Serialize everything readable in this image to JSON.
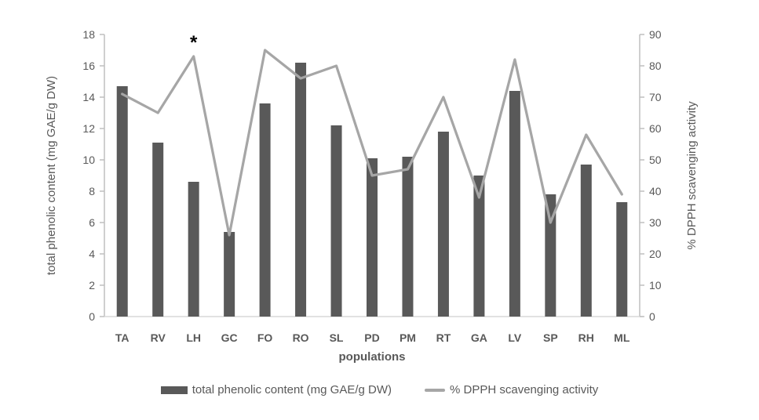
{
  "chart_data": {
    "type": "combo_bar_line",
    "title": "",
    "categories": [
      "TA",
      "RV",
      "LH",
      "GC",
      "FO",
      "RO",
      "SL",
      "PD",
      "PM",
      "RT",
      "GA",
      "LV",
      "SP",
      "RH",
      "ML"
    ],
    "series": [
      {
        "name": "total phenolic content (mg GAE/g DW)",
        "type": "bar",
        "axis": "left",
        "color": "#595959",
        "values": [
          14.7,
          11.1,
          8.6,
          5.4,
          13.6,
          16.2,
          12.2,
          10.1,
          10.2,
          11.8,
          9.0,
          14.4,
          7.8,
          9.7,
          7.3
        ]
      },
      {
        "name": "% DPPH scavenging activity",
        "type": "line",
        "axis": "right",
        "color": "#a6a6a6",
        "values": [
          71,
          65,
          83,
          26,
          85,
          76,
          80,
          45,
          47,
          70,
          38,
          82,
          30,
          58,
          39
        ]
      }
    ],
    "left_axis": {
      "label": "total phenolic content (mg GAE/g DW)",
      "min": 0,
      "max": 18,
      "step": 2
    },
    "right_axis": {
      "label": "% DPPH scavenging activity",
      "min": 0,
      "max": 90,
      "step": 10
    },
    "x_axis": {
      "label": "populations"
    },
    "annotations": [
      {
        "text": "*",
        "category": "LH",
        "series": "% DPPH scavenging activity",
        "position": "above"
      }
    ],
    "legend": {
      "position": "bottom",
      "entries": [
        "total phenolic content (mg GAE/g DW)",
        "% DPPH scavenging activity"
      ]
    },
    "grid": false
  },
  "colors": {
    "background": "#ffffff",
    "bar": "#595959",
    "line": "#a6a6a6",
    "axis_line": "#bfbfbf",
    "baseline": "#d9d9d9",
    "text": "#595959",
    "annotation": "#000000"
  }
}
